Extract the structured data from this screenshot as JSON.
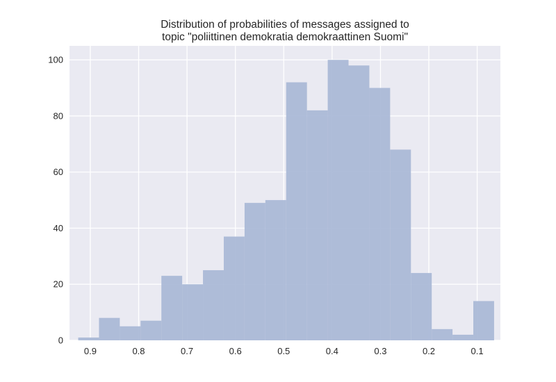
{
  "chart_data": {
    "type": "bar",
    "title_lines": [
      "Distribution of probabilities of messages assigned to",
      "topic \"poliittinen demokratia demokraattinen Suomi\""
    ],
    "xlabel": "",
    "ylabel": "",
    "x_axis_inverted": true,
    "xlim": [
      0.943,
      0.052
    ],
    "ylim": [
      0,
      105
    ],
    "x_ticks": [
      0.9,
      0.8,
      0.7,
      0.6,
      0.5,
      0.4,
      0.3,
      0.2,
      0.1
    ],
    "x_tick_labels": [
      "0.9",
      "0.8",
      "0.7",
      "0.6",
      "0.5",
      "0.4",
      "0.3",
      "0.2",
      "0.1"
    ],
    "y_ticks": [
      0,
      20,
      40,
      60,
      80,
      100
    ],
    "y_tick_labels": [
      "0",
      "20",
      "40",
      "60",
      "80",
      "100"
    ],
    "grid": true,
    "bar_color": "#a8b7d6",
    "background_color": "#eaeaf2",
    "grid_color": "#ffffff",
    "bins": [
      {
        "x_start": 0.925,
        "x_end": 0.882,
        "count": 1
      },
      {
        "x_start": 0.882,
        "x_end": 0.839,
        "count": 8
      },
      {
        "x_start": 0.839,
        "x_end": 0.796,
        "count": 5
      },
      {
        "x_start": 0.796,
        "x_end": 0.753,
        "count": 7
      },
      {
        "x_start": 0.753,
        "x_end": 0.71,
        "count": 23
      },
      {
        "x_start": 0.71,
        "x_end": 0.667,
        "count": 20
      },
      {
        "x_start": 0.667,
        "x_end": 0.624,
        "count": 25
      },
      {
        "x_start": 0.624,
        "x_end": 0.581,
        "count": 37
      },
      {
        "x_start": 0.581,
        "x_end": 0.538,
        "count": 49
      },
      {
        "x_start": 0.538,
        "x_end": 0.495,
        "count": 50
      },
      {
        "x_start": 0.495,
        "x_end": 0.452,
        "count": 92
      },
      {
        "x_start": 0.452,
        "x_end": 0.409,
        "count": 82
      },
      {
        "x_start": 0.409,
        "x_end": 0.366,
        "count": 100
      },
      {
        "x_start": 0.366,
        "x_end": 0.323,
        "count": 98
      },
      {
        "x_start": 0.323,
        "x_end": 0.28,
        "count": 90
      },
      {
        "x_start": 0.28,
        "x_end": 0.237,
        "count": 68
      },
      {
        "x_start": 0.237,
        "x_end": 0.194,
        "count": 24
      },
      {
        "x_start": 0.194,
        "x_end": 0.151,
        "count": 4
      },
      {
        "x_start": 0.151,
        "x_end": 0.108,
        "count": 2
      },
      {
        "x_start": 0.108,
        "x_end": 0.065,
        "count": 14
      }
    ]
  }
}
